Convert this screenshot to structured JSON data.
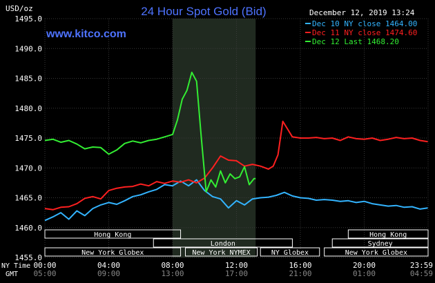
{
  "chart_data": {
    "type": "line",
    "title": "24 Hour Spot Gold (Bid)",
    "ylabel": "USD/oz",
    "website": "www.kitco.com",
    "timestamp": "December 12, 2019 13:24",
    "ylim": [
      1455,
      1495
    ],
    "yticks": [
      "1495.0",
      "1490.0",
      "1485.0",
      "1480.0",
      "1475.0",
      "1470.0",
      "1465.0",
      "1460.0",
      "1455.0"
    ],
    "xlim": [
      0,
      24
    ],
    "xticks_ny": [
      "00:00",
      "04:00",
      "08:00",
      "12:00",
      "16:00",
      "20:00",
      "23:59"
    ],
    "xticks_gmt": [
      "05:00",
      "09:00",
      "13:00",
      "17:00",
      "21:00",
      "01:00",
      "04:59"
    ],
    "x_axis_labels": {
      "ny": "NY Time",
      "gmt": "GMT"
    },
    "grid": true,
    "legend_position": "top-right",
    "highlight_band": [
      8.0,
      13.2
    ],
    "series": [
      {
        "name": "Dec 10 NY close 1464.00",
        "color": "#33b4ff",
        "x": [
          0,
          0.5,
          1,
          1.5,
          2,
          2.5,
          3,
          3.5,
          4,
          4.5,
          5,
          5.5,
          6,
          6.5,
          7,
          7.5,
          8,
          8.5,
          9,
          9.5,
          10,
          10.5,
          11,
          11.5,
          12,
          12.5,
          13,
          13.5,
          14,
          14.5,
          15,
          15.5,
          16,
          16.5,
          17,
          17.5,
          18,
          18.5,
          19,
          19.5,
          20,
          20.5,
          21,
          21.5,
          22,
          22.5,
          23,
          23.5,
          23.98
        ],
        "values": [
          1461.2,
          1461.8,
          1462.5,
          1461.4,
          1462.8,
          1462.0,
          1463.2,
          1463.8,
          1464.2,
          1463.9,
          1464.5,
          1465.2,
          1465.5,
          1466.0,
          1466.4,
          1467.2,
          1467.0,
          1467.8,
          1467.0,
          1468.0,
          1466.2,
          1465.2,
          1464.8,
          1463.3,
          1464.5,
          1463.8,
          1464.8,
          1465.0,
          1465.1,
          1465.4,
          1465.9,
          1465.3,
          1465.0,
          1464.9,
          1464.6,
          1464.7,
          1464.6,
          1464.4,
          1464.5,
          1464.2,
          1464.4,
          1464.0,
          1463.8,
          1463.6,
          1463.7,
          1463.4,
          1463.5,
          1463.1,
          1463.3
        ]
      },
      {
        "name": "Dec 11 NY close 1474.60",
        "color": "#ff2020",
        "x": [
          0,
          0.5,
          1,
          1.5,
          2,
          2.5,
          3,
          3.5,
          4,
          4.5,
          5,
          5.5,
          6,
          6.5,
          7,
          7.5,
          8,
          8.5,
          9,
          9.5,
          10,
          10.5,
          11,
          11.5,
          12,
          12.5,
          13,
          13.5,
          14,
          14.3,
          14.6,
          14.9,
          15.2,
          15.5,
          16,
          16.5,
          17,
          17.5,
          18,
          18.5,
          19,
          19.5,
          20,
          20.5,
          21,
          21.5,
          22,
          22.5,
          23,
          23.5,
          23.98
        ],
        "values": [
          1463.2,
          1463.0,
          1463.4,
          1463.5,
          1464.0,
          1464.9,
          1465.2,
          1464.8,
          1466.2,
          1466.6,
          1466.8,
          1466.9,
          1467.3,
          1467.0,
          1467.7,
          1467.4,
          1467.8,
          1467.6,
          1468.0,
          1467.5,
          1468.3,
          1470.0,
          1472.0,
          1471.3,
          1471.2,
          1470.3,
          1470.6,
          1470.3,
          1469.8,
          1470.3,
          1472.2,
          1477.8,
          1476.5,
          1475.2,
          1475.0,
          1475.0,
          1475.1,
          1474.9,
          1475.0,
          1474.6,
          1475.2,
          1474.9,
          1474.8,
          1475.0,
          1474.6,
          1474.8,
          1475.1,
          1474.9,
          1475.0,
          1474.6,
          1474.4
        ]
      },
      {
        "name": "Dec 12 Last 1468.20",
        "color": "#33ee33",
        "x": [
          0,
          0.5,
          1,
          1.5,
          2,
          2.5,
          3,
          3.5,
          4,
          4.5,
          5,
          5.5,
          6,
          6.5,
          7,
          7.5,
          8,
          8.3,
          8.6,
          8.9,
          9.2,
          9.5,
          9.8,
          10.1,
          10.4,
          10.7,
          11.0,
          11.3,
          11.6,
          11.9,
          12.2,
          12.5,
          12.8,
          13.1,
          13.2
        ],
        "values": [
          1474.6,
          1474.8,
          1474.3,
          1474.6,
          1474.0,
          1473.2,
          1473.5,
          1473.4,
          1472.3,
          1473.0,
          1474.1,
          1474.5,
          1474.2,
          1474.6,
          1474.8,
          1475.2,
          1475.6,
          1478.0,
          1481.5,
          1483.0,
          1486.0,
          1484.5,
          1475.0,
          1466.0,
          1468.0,
          1466.8,
          1469.5,
          1467.5,
          1469.0,
          1468.2,
          1468.5,
          1470.2,
          1467.2,
          1468.2,
          1468.2
        ]
      }
    ],
    "sessions": [
      {
        "label": "Hong Kong",
        "row": 0,
        "start": 0.0,
        "end": 8.5,
        "color": "#ffffff"
      },
      {
        "label": "London",
        "row": 1,
        "start": 6.8,
        "end": 15.5,
        "color": "#ffffff"
      },
      {
        "label": "New York Globex",
        "row": 2,
        "start": 0.0,
        "end": 8.5,
        "color": "#ffffff"
      },
      {
        "label": "New York NYMEX",
        "row": 2,
        "start": 8.8,
        "end": 13.3,
        "color": "#ffffff"
      },
      {
        "label": "NY Globex",
        "row": 2,
        "start": 13.5,
        "end": 17.2,
        "color": "#ffffff"
      },
      {
        "label": "Hong Kong",
        "row": 0,
        "start": 19.0,
        "end": 24.0,
        "color": "#ffffff"
      },
      {
        "label": "Sydney",
        "row": 1,
        "start": 18.0,
        "end": 24.0,
        "color": "#ffffff"
      },
      {
        "label": "New York Globex",
        "row": 2,
        "start": 17.5,
        "end": 24.0,
        "color": "#ffffff"
      }
    ],
    "colors": {
      "background": "#000000",
      "grid": "#3a3a3a",
      "highlight": "#202a20",
      "title": "#4e73ff",
      "website": "#4e73ff",
      "axis_text": "#ffffff"
    }
  }
}
